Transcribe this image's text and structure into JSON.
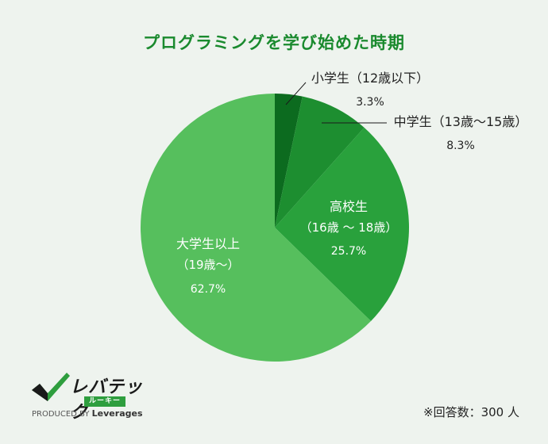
{
  "chart_data": {
    "type": "pie",
    "title": "プログラミングを学び始めた時期",
    "slices": [
      {
        "label": "小学生（12歳以下）",
        "value": 3.3,
        "value_text": "3.3%",
        "color": "#0c6b1f"
      },
      {
        "label": "中学生（13歳〜15歳）",
        "value": 8.3,
        "value_text": "8.3%",
        "color": "#1d8e30"
      },
      {
        "label": "高校生",
        "sub": "（16歳 〜 18歳）",
        "value": 25.7,
        "value_text": "25.7%",
        "color": "#29a13c"
      },
      {
        "label": "大学生以上",
        "sub": "（19歳〜）",
        "value": 62.7,
        "value_text": "62.7%",
        "color": "#56bf5d"
      }
    ],
    "start_angle": "12 o'clock",
    "direction": "clockwise"
  },
  "logo": {
    "brand": "レバテック",
    "sub": "ルーキー",
    "tag_prefix": "PRODUCED BY",
    "tag_company": "Leverages"
  },
  "note": "※回答数：300 人"
}
